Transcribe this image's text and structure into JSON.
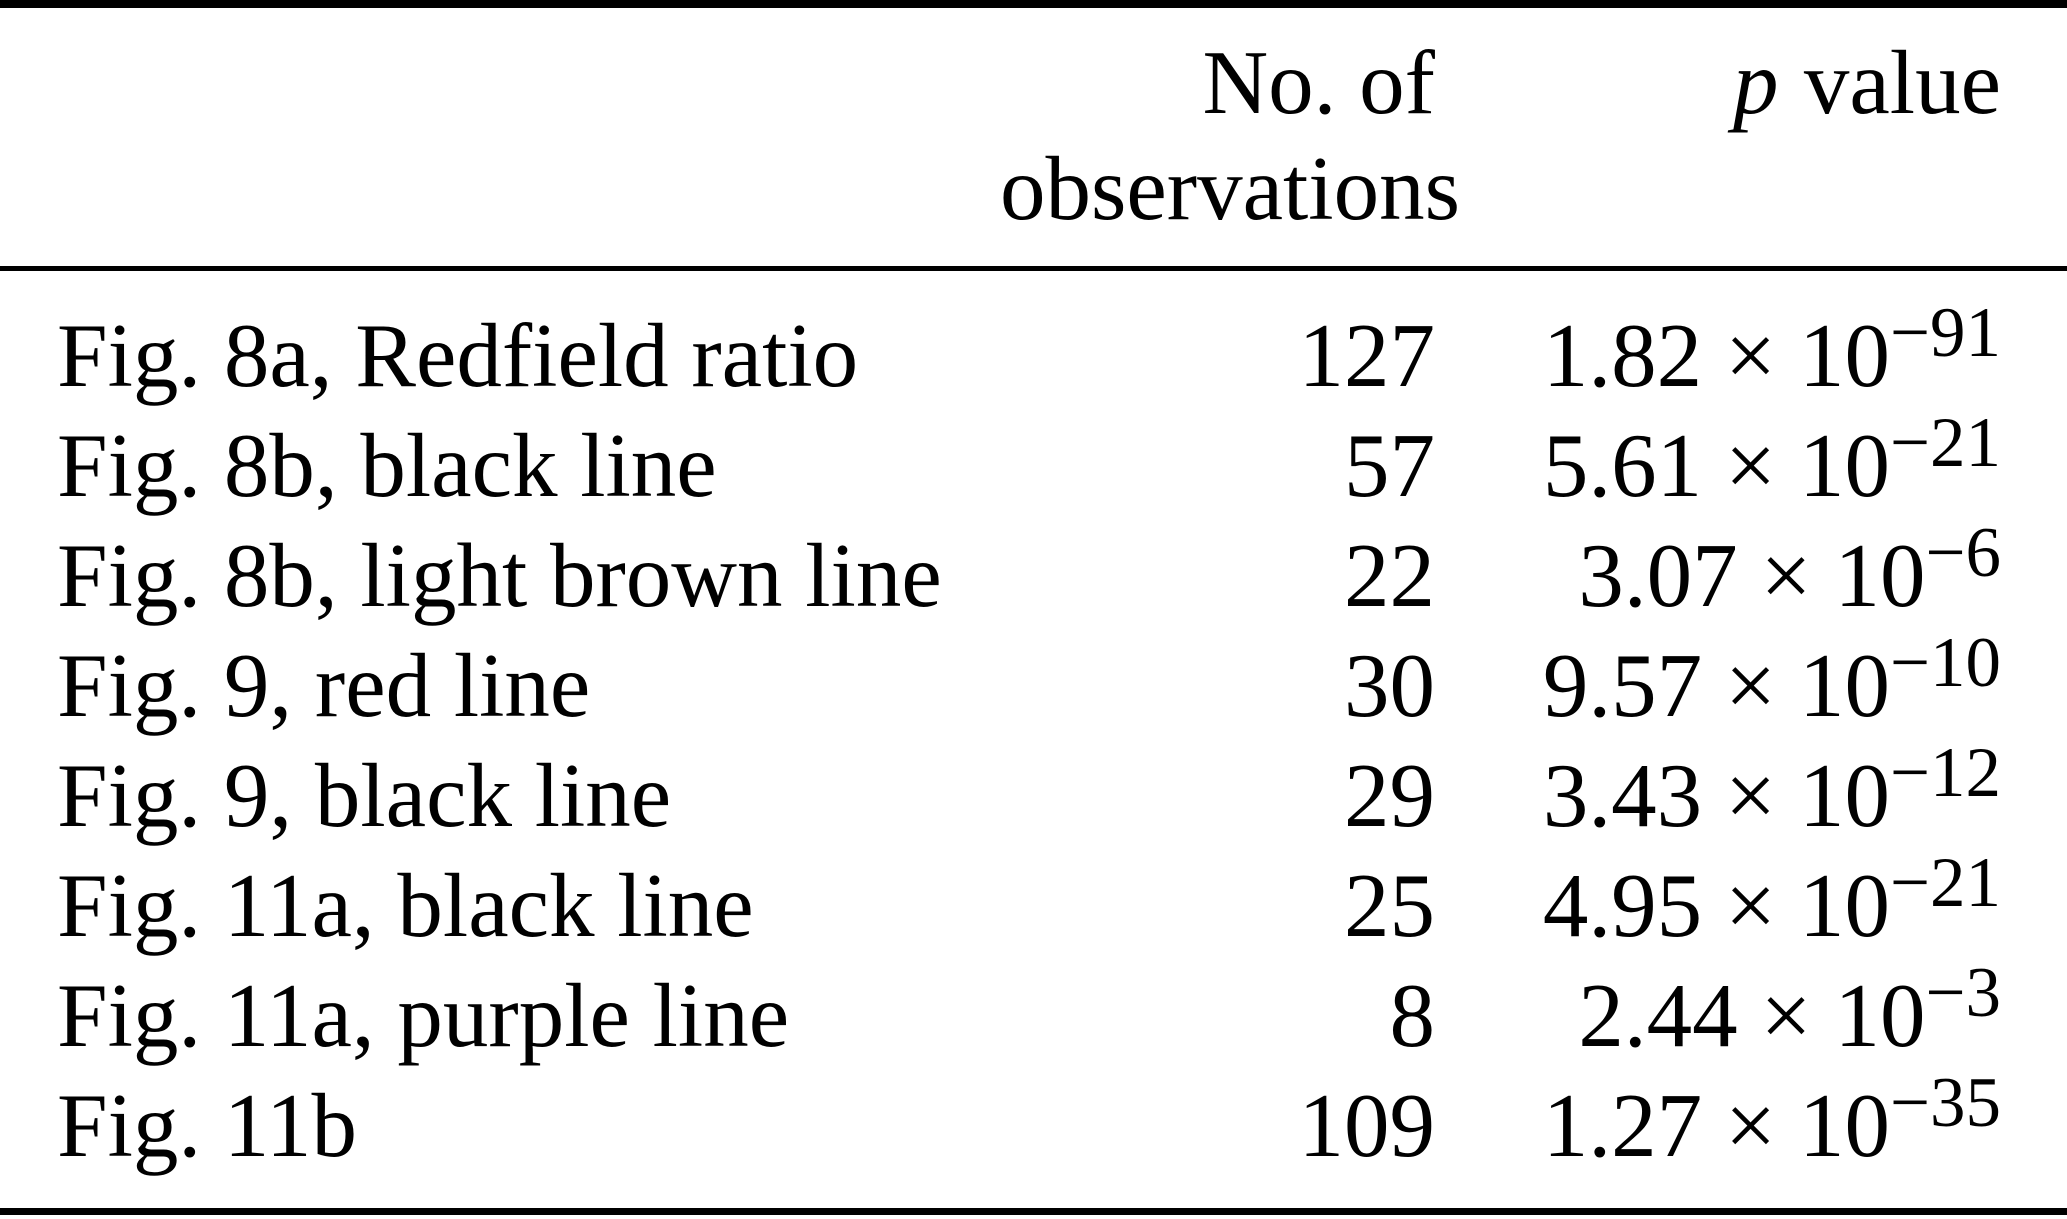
{
  "page": {
    "background_color": "#ffffff",
    "text_color": "#000000"
  },
  "table": {
    "header": {
      "observations_line1": "No. of",
      "observations_line2": "observations",
      "p_symbol": "p",
      "p_label": "value"
    },
    "notation": {
      "times_ten": " × 10"
    },
    "rows": [
      {
        "label": "Fig. 8a, Redfield ratio",
        "observations": "127",
        "p_coefficient": "1.82",
        "p_exponent": "−91"
      },
      {
        "label": "Fig. 8b, black line",
        "observations": "57",
        "p_coefficient": "5.61",
        "p_exponent": "−21"
      },
      {
        "label": "Fig. 8b, light brown line",
        "observations": "22",
        "p_coefficient": "3.07",
        "p_exponent": "−6"
      },
      {
        "label": "Fig. 9, red line",
        "observations": "30",
        "p_coefficient": "9.57",
        "p_exponent": "−10"
      },
      {
        "label": "Fig. 9, black line",
        "observations": "29",
        "p_coefficient": "3.43",
        "p_exponent": "−12"
      },
      {
        "label": "Fig. 11a, black line",
        "observations": "25",
        "p_coefficient": "4.95",
        "p_exponent": "−21"
      },
      {
        "label": "Fig. 11a, purple line",
        "observations": "8",
        "p_coefficient": "2.44",
        "p_exponent": "−3"
      },
      {
        "label": "Fig. 11b",
        "observations": "109",
        "p_coefficient": "1.27",
        "p_exponent": "−35"
      }
    ]
  }
}
